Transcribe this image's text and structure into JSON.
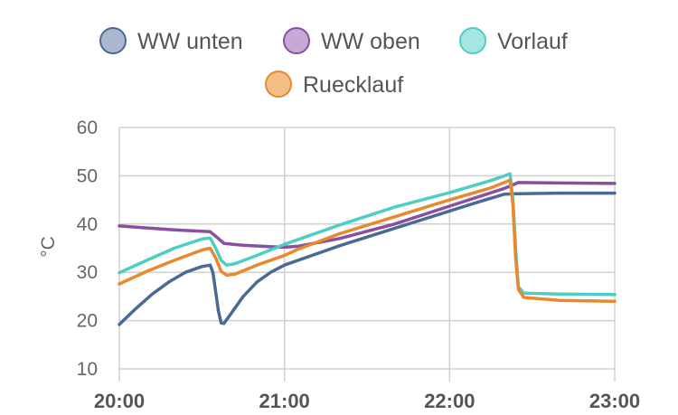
{
  "chart_data": {
    "type": "line",
    "title": "",
    "xlabel": "",
    "ylabel": "°C",
    "xlim": [
      "20:00",
      "23:00"
    ],
    "x_ticks": [
      "20:00",
      "21:00",
      "22:00",
      "23:00"
    ],
    "ylim": [
      10,
      60
    ],
    "y_ticks": [
      "10",
      "20",
      "30",
      "40",
      "50",
      "60"
    ],
    "grid": true,
    "legend": "top",
    "series": [
      {
        "name": "WW unten",
        "color": "#4a6a94",
        "fill": "#a9b9cf",
        "points": [
          [
            "20:00",
            19.2
          ],
          [
            "20:06",
            22.5
          ],
          [
            "20:12",
            25.5
          ],
          [
            "20:18",
            28
          ],
          [
            "20:24",
            30
          ],
          [
            "20:30",
            31.2
          ],
          [
            "20:33",
            31.5
          ],
          [
            "20:34",
            30
          ],
          [
            "20:35",
            26
          ],
          [
            "20:36",
            22
          ],
          [
            "20:37",
            19.5
          ],
          [
            "20:38",
            19.4
          ],
          [
            "20:40",
            21
          ],
          [
            "20:45",
            25
          ],
          [
            "20:50",
            28
          ],
          [
            "20:55",
            30
          ],
          [
            "21:00",
            31.5
          ],
          [
            "21:10",
            33.5
          ],
          [
            "21:20",
            35.5
          ],
          [
            "21:30",
            37.3
          ],
          [
            "21:40",
            39.1
          ],
          [
            "21:50",
            40.9
          ],
          [
            "22:00",
            42.7
          ],
          [
            "22:10",
            44.5
          ],
          [
            "22:20",
            46.2
          ],
          [
            "22:25",
            46.3
          ],
          [
            "22:40",
            46.4
          ],
          [
            "23:00",
            46.4
          ]
        ]
      },
      {
        "name": "WW oben",
        "color": "#8a4fa0",
        "fill": "#c8a8d4",
        "points": [
          [
            "20:00",
            39.6
          ],
          [
            "20:10",
            39.2
          ],
          [
            "20:20",
            38.8
          ],
          [
            "20:33",
            38.4
          ],
          [
            "20:36",
            37
          ],
          [
            "20:38",
            36
          ],
          [
            "20:45",
            35.6
          ],
          [
            "20:55",
            35.3
          ],
          [
            "21:00",
            35.2
          ],
          [
            "21:05",
            35.4
          ],
          [
            "21:20",
            37
          ],
          [
            "21:40",
            40
          ],
          [
            "22:00",
            43.7
          ],
          [
            "22:20",
            47.4
          ],
          [
            "22:25",
            48.6
          ],
          [
            "22:40",
            48.5
          ],
          [
            "23:00",
            48.4
          ]
        ]
      },
      {
        "name": "Vorlauf",
        "color": "#4ecdc4",
        "fill": "#a6e6e2",
        "points": [
          [
            "20:00",
            29.9
          ],
          [
            "20:10",
            32.5
          ],
          [
            "20:20",
            35
          ],
          [
            "20:30",
            36.9
          ],
          [
            "20:33",
            37.1
          ],
          [
            "20:35",
            35
          ],
          [
            "20:37",
            32.5
          ],
          [
            "20:39",
            31.5
          ],
          [
            "20:42",
            31.8
          ],
          [
            "20:50",
            33.5
          ],
          [
            "21:00",
            35.8
          ],
          [
            "21:20",
            39.8
          ],
          [
            "21:40",
            43.5
          ],
          [
            "22:00",
            46.5
          ],
          [
            "22:15",
            49
          ],
          [
            "22:22",
            50.4
          ],
          [
            "22:23",
            45
          ],
          [
            "22:24",
            35
          ],
          [
            "22:25",
            27
          ],
          [
            "22:27",
            25.7
          ],
          [
            "22:40",
            25.5
          ],
          [
            "23:00",
            25.4
          ]
        ]
      },
      {
        "name": "Ruecklauf",
        "color": "#e8892f",
        "fill": "#f3bf86",
        "points": [
          [
            "20:00",
            27.6
          ],
          [
            "20:10",
            30.2
          ],
          [
            "20:20",
            32.5
          ],
          [
            "20:30",
            34.6
          ],
          [
            "20:33",
            35
          ],
          [
            "20:35",
            33
          ],
          [
            "20:37",
            30.2
          ],
          [
            "20:39",
            29.4
          ],
          [
            "20:42",
            29.6
          ],
          [
            "20:50",
            31.5
          ],
          [
            "21:00",
            33.5
          ],
          [
            "21:05",
            34.8
          ],
          [
            "21:20",
            38
          ],
          [
            "21:40",
            41.5
          ],
          [
            "22:00",
            45
          ],
          [
            "22:15",
            47.5
          ],
          [
            "22:22",
            49.1
          ],
          [
            "22:23",
            44
          ],
          [
            "22:24",
            33
          ],
          [
            "22:25",
            26.5
          ],
          [
            "22:27",
            24.8
          ],
          [
            "22:40",
            24.2
          ],
          [
            "23:00",
            24
          ]
        ]
      }
    ]
  }
}
